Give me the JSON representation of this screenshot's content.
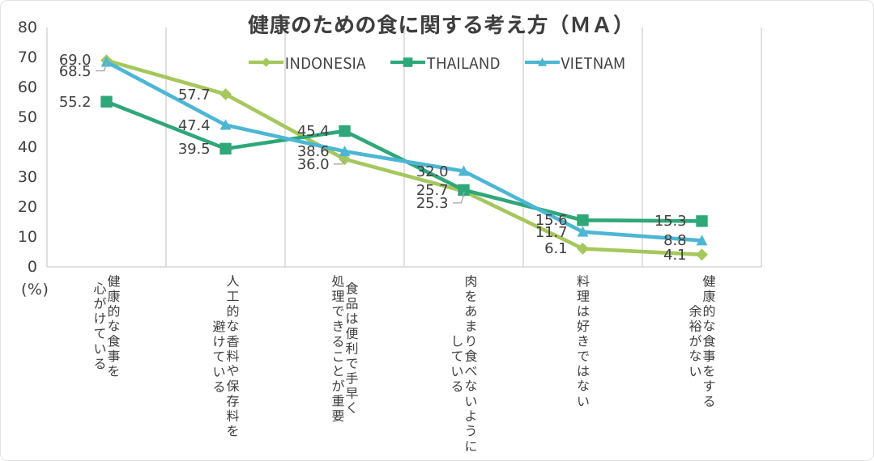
{
  "chart_data": {
    "type": "line",
    "title": "健康のための食に関する考え方（ＭＡ）",
    "unit_label": "(%)",
    "ylim": [
      0,
      80
    ],
    "ytick_step": 10,
    "grid": "vertical-category-separators",
    "legend_position": "top-center",
    "background": "#ffffff",
    "categories": [
      [
        "健康的な食事を",
        "心がけている"
      ],
      [
        "人工的な香料や保存料を",
        "避けている"
      ],
      [
        "食品は便利で手早く",
        "処理できることが重要"
      ],
      [
        "肉をあまり食べないように",
        "している"
      ],
      [
        "料理は好きではない"
      ],
      [
        "健康的な食事をする",
        "余裕がない"
      ]
    ],
    "series": [
      {
        "name": "INDONESIA",
        "color": "#a5c75c",
        "marker": "diamond",
        "values": [
          69.0,
          57.7,
          36.0,
          25.3,
          6.1,
          4.1
        ]
      },
      {
        "name": "THAILAND",
        "color": "#2ea779",
        "marker": "square",
        "values": [
          55.2,
          39.5,
          45.4,
          25.7,
          15.6,
          15.3
        ]
      },
      {
        "name": "VIETNAM",
        "color": "#4db6d3",
        "marker": "triangle",
        "values": [
          68.5,
          47.4,
          38.6,
          32.0,
          11.7,
          8.8
        ]
      }
    ],
    "data_label_overrides": [
      {
        "series": "VIETNAM",
        "index": 0,
        "dy": 11.1,
        "leader": true
      },
      {
        "series": "INDONESIA",
        "index": 0,
        "dy": -1.2,
        "leader": false
      },
      {
        "series": "INDONESIA",
        "index": 2,
        "dy": 6.0,
        "leader": true
      },
      {
        "series": "INDONESIA",
        "index": 3,
        "dy": 14.5,
        "leader": true
      }
    ],
    "colors": {
      "text": "#404040",
      "grid": "#D6D6D6",
      "leader": "#A6A6A6",
      "frame_border": "#E3E3E3"
    }
  }
}
